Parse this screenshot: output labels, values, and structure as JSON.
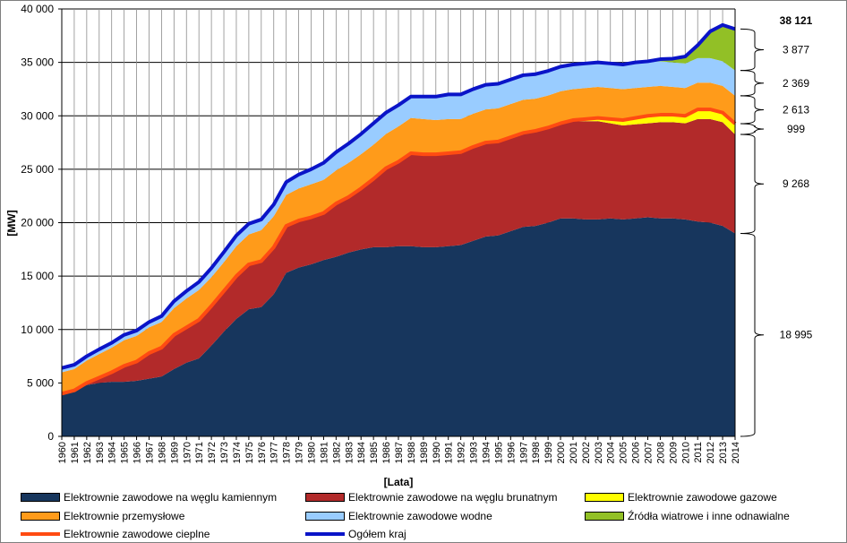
{
  "chart_data": {
    "type": "area",
    "stacked": true,
    "ylabel": "[MW]",
    "xlabel": "[Lata]",
    "ylim": [
      0,
      40000
    ],
    "yticks": [
      "0",
      "5 000",
      "10 000",
      "15 000",
      "20 000",
      "25 000",
      "30 000",
      "35 000",
      "40 000"
    ],
    "grid": true,
    "x": [
      1960,
      1961,
      1962,
      1963,
      1964,
      1965,
      1966,
      1967,
      1968,
      1969,
      1970,
      1971,
      1972,
      1973,
      1974,
      1975,
      1976,
      1977,
      1978,
      1979,
      1980,
      1981,
      1982,
      1983,
      1984,
      1985,
      1986,
      1987,
      1988,
      1989,
      1990,
      1991,
      1992,
      1993,
      1994,
      1995,
      1996,
      1997,
      1998,
      1999,
      2000,
      2001,
      2002,
      2003,
      2004,
      2005,
      2006,
      2007,
      2008,
      2009,
      2010,
      2011,
      2012,
      2013,
      2014
    ],
    "xtick_labels": [
      "1960",
      "1961",
      "1962",
      "1963",
      "1964",
      "1965",
      "1966",
      "1967",
      "1968",
      "1969",
      "1970",
      "1971",
      "1972",
      "1973",
      "1974",
      "1975",
      "1976",
      "1977",
      "1978",
      "1979",
      "1980",
      "1981",
      "1982",
      "1983",
      "1984",
      "1985",
      "1986",
      "1987",
      "1988",
      "1989",
      "1990",
      "1991",
      "1992",
      "1993",
      "1994",
      "1995",
      "1996",
      "1997",
      "1998",
      "1999",
      "2000",
      "2001",
      "2002",
      "2003",
      "2004",
      "2005",
      "2006",
      "2007",
      "2008",
      "2009",
      "2010",
      "2011",
      "2012",
      "2013",
      "2014"
    ],
    "series": [
      {
        "name": "Elektrownie zawodowe na węglu kamiennym",
        "color": "#17365d",
        "values": [
          4000,
          4300,
          4800,
          5000,
          5100,
          5100,
          5200,
          5400,
          5600,
          6300,
          6900,
          7300,
          8500,
          9800,
          11000,
          11900,
          12100,
          13300,
          15300,
          15800,
          16100,
          16500,
          16800,
          17200,
          17500,
          17700,
          17700,
          17800,
          17800,
          17700,
          17700,
          17800,
          17900,
          18300,
          18700,
          18800,
          19200,
          19600,
          19700,
          20000,
          20400,
          20400,
          20300,
          20300,
          20400,
          20300,
          20400,
          20500,
          20400,
          20400,
          20300,
          20100,
          20000,
          19700,
          18995
        ]
      },
      {
        "name": "Elektrownie zawodowe na węglu brunatnym",
        "color": "#b22a2a",
        "values": [
          0,
          0,
          200,
          500,
          900,
          1500,
          1800,
          2400,
          2700,
          3200,
          3300,
          3600,
          3700,
          3800,
          4000,
          4200,
          4300,
          4400,
          4400,
          4400,
          4400,
          4400,
          5000,
          5200,
          5700,
          6400,
          7400,
          7900,
          8700,
          8700,
          8700,
          8700,
          8700,
          8800,
          8800,
          8800,
          8800,
          8800,
          8900,
          8900,
          8900,
          9100,
          9200,
          9200,
          8900,
          8800,
          8800,
          8800,
          9000,
          9000,
          9000,
          9600,
          9700,
          9700,
          9268
        ]
      },
      {
        "name": "Elektrownie zawodowe gazowe",
        "color": "#ffff00",
        "values": [
          0,
          0,
          0,
          0,
          0,
          0,
          0,
          0,
          0,
          0,
          0,
          0,
          0,
          0,
          0,
          0,
          0,
          0,
          0,
          0,
          0,
          0,
          0,
          0,
          0,
          0,
          0,
          0,
          0,
          0,
          0,
          0,
          0,
          0,
          0,
          0,
          0,
          0,
          0,
          0,
          0,
          100,
          200,
          300,
          400,
          500,
          600,
          700,
          700,
          700,
          700,
          900,
          900,
          900,
          999
        ]
      },
      {
        "name": "Elektrownie przemysłowe",
        "color": "#ff9b1a",
        "values": [
          2000,
          2000,
          2100,
          2200,
          2300,
          2400,
          2400,
          2400,
          2400,
          2500,
          2700,
          2800,
          2700,
          2700,
          2800,
          2800,
          2900,
          2900,
          2900,
          3000,
          3100,
          3100,
          3100,
          3200,
          3200,
          3200,
          3200,
          3300,
          3300,
          3300,
          3200,
          3200,
          3100,
          3100,
          3100,
          3100,
          3100,
          3100,
          3000,
          3000,
          3000,
          2900,
          2900,
          2900,
          2900,
          2900,
          2800,
          2700,
          2700,
          2600,
          2600,
          2500,
          2500,
          2500,
          2613
        ]
      },
      {
        "name": "Elektrownie zawodowe wodne",
        "color": "#99ccff",
        "values": [
          400,
          400,
          400,
          450,
          450,
          500,
          500,
          500,
          550,
          650,
          700,
          750,
          850,
          950,
          1000,
          1000,
          1000,
          1100,
          1200,
          1300,
          1400,
          1600,
          1700,
          1800,
          1900,
          2000,
          2000,
          2000,
          2000,
          2100,
          2200,
          2300,
          2300,
          2300,
          2300,
          2300,
          2300,
          2300,
          2300,
          2300,
          2300,
          2300,
          2300,
          2300,
          2300,
          2300,
          2300,
          2300,
          2300,
          2300,
          2300,
          2300,
          2300,
          2300,
          2369
        ]
      },
      {
        "name": "Źródła wiatrowe i inne odnawialne",
        "color": "#92c026",
        "values": [
          0,
          0,
          0,
          0,
          0,
          0,
          0,
          0,
          0,
          0,
          0,
          0,
          0,
          0,
          0,
          0,
          0,
          0,
          0,
          0,
          0,
          0,
          0,
          0,
          0,
          0,
          0,
          0,
          0,
          0,
          0,
          0,
          0,
          0,
          0,
          0,
          0,
          0,
          0,
          0,
          0,
          0,
          0,
          0,
          0,
          0,
          50,
          100,
          200,
          350,
          650,
          1200,
          2500,
          3300,
          3877
        ]
      },
      {
        "name": "Elektrownie zawodowe cieplne",
        "color": "#ff4b12",
        "type": "line",
        "values": [
          4000,
          4300,
          5000,
          5500,
          6000,
          6600,
          7000,
          7800,
          8300,
          9500,
          10200,
          10900,
          12200,
          13600,
          15000,
          16100,
          16400,
          17700,
          19700,
          20200,
          20500,
          20900,
          21800,
          22400,
          23200,
          24100,
          25100,
          25700,
          26500,
          26400,
          26400,
          26500,
          26600,
          27100,
          27500,
          27600,
          28000,
          28400,
          28600,
          28900,
          29300,
          29600,
          29700,
          29800,
          29700,
          29600,
          29800,
          30000,
          30100,
          30100,
          30000,
          30600,
          30600,
          30300,
          29262
        ]
      },
      {
        "name": "Ogółem kraj",
        "color": "#0a14c8",
        "type": "line",
        "values": [
          6400,
          6700,
          7500,
          8150,
          8750,
          9500,
          9900,
          10700,
          11250,
          12650,
          13600,
          14450,
          15750,
          17250,
          18800,
          19900,
          20300,
          21700,
          23800,
          24500,
          25000,
          25600,
          26600,
          27400,
          28300,
          29300,
          30300,
          31000,
          31800,
          31800,
          31800,
          32000,
          32000,
          32500,
          32900,
          33000,
          33400,
          33800,
          33900,
          34200,
          34600,
          34800,
          34900,
          35000,
          34900,
          34800,
          35000,
          35100,
          35300,
          35350,
          35550,
          36600,
          37900,
          38500,
          38121
        ]
      }
    ],
    "brackets": [
      {
        "label": "18 995",
        "from": 0,
        "to": 18995
      },
      {
        "label": "9 268",
        "from": 18995,
        "to": 28263
      },
      {
        "label": "999",
        "from": 28263,
        "to": 29262
      },
      {
        "label": "2 613",
        "from": 29262,
        "to": 31875
      },
      {
        "label": "2 369",
        "from": 31875,
        "to": 34244
      },
      {
        "label": "3 877",
        "from": 34244,
        "to": 38121
      }
    ],
    "total_label": "38 121"
  },
  "legend": [
    {
      "label": "Elektrownie zawodowe na węglu kamiennym",
      "color": "#17365d",
      "style": "fill"
    },
    {
      "label": "Elektrownie zawodowe na węglu brunatnym",
      "color": "#b22a2a",
      "style": "fill"
    },
    {
      "label": "Elektrownie zawodowe gazowe",
      "color": "#ffff00",
      "style": "fill"
    },
    {
      "label": "Elektrownie przemysłowe",
      "color": "#ff9b1a",
      "style": "fill"
    },
    {
      "label": "Elektrownie zawodowe wodne",
      "color": "#99ccff",
      "style": "fill"
    },
    {
      "label": "Źródła wiatrowe i inne odnawialne",
      "color": "#92c026",
      "style": "fill"
    },
    {
      "label": "Elektrownie zawodowe cieplne",
      "color": "#ff4b12",
      "style": "line"
    },
    {
      "label": "Ogółem kraj",
      "color": "#0a14c8",
      "style": "line"
    }
  ]
}
